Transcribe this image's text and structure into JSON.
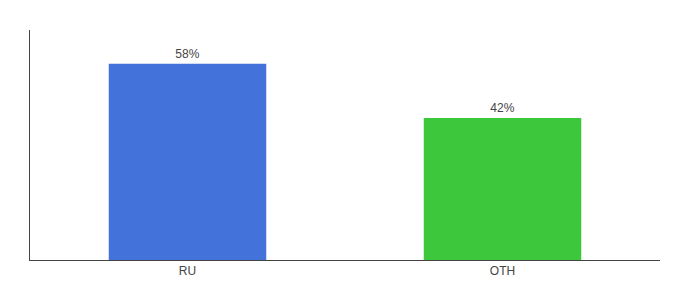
{
  "chart_data": {
    "type": "bar",
    "categories": [
      "RU",
      "OTH"
    ],
    "values": [
      58,
      42
    ],
    "value_labels": [
      "58%",
      "42%"
    ],
    "colors": [
      "#4472db",
      "#3dc73d"
    ],
    "ylim": [
      0,
      68
    ],
    "data_labels": true,
    "tick_labels": "x",
    "grid": false
  }
}
